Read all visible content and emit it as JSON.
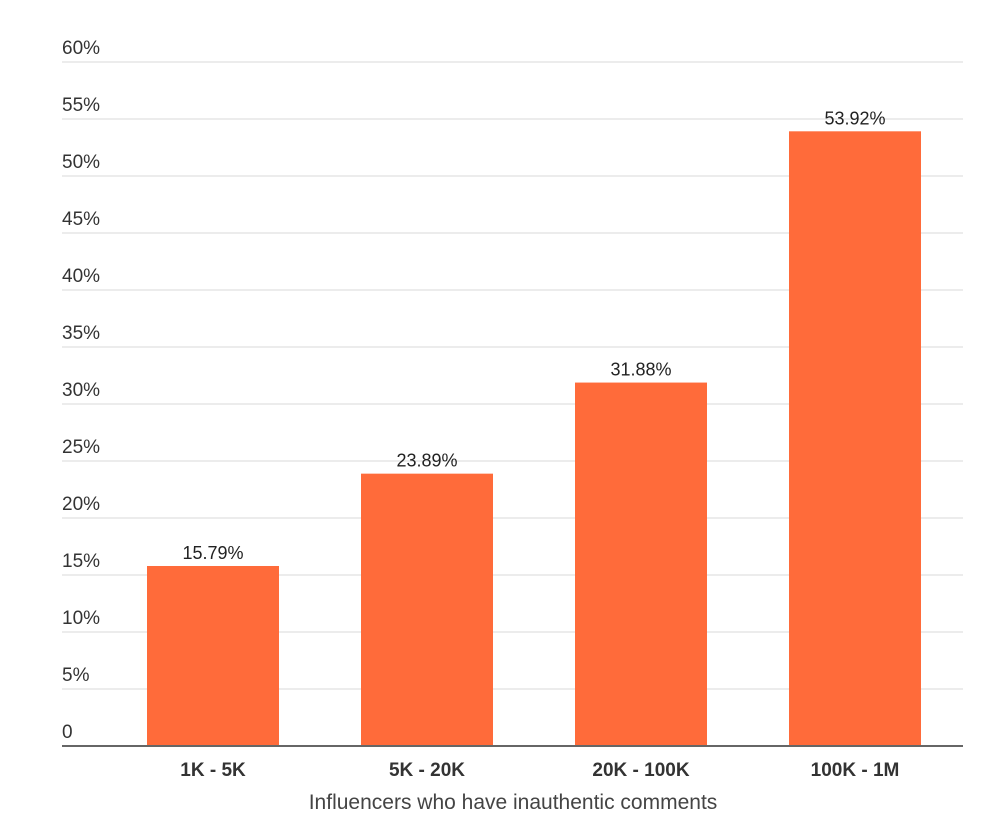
{
  "chart_data": {
    "type": "bar",
    "categories": [
      "1K - 5K",
      "5K - 20K",
      "20K - 100K",
      "100K - 1M"
    ],
    "values": [
      15.79,
      23.89,
      31.88,
      53.92
    ],
    "value_labels": [
      "15.79%",
      "23.89%",
      "31.88%",
      "53.92%"
    ],
    "xlabel": "Influencers who have inauthentic comments",
    "ylabel": "",
    "ylim": [
      0,
      60
    ],
    "y_ticks": [
      0,
      5,
      10,
      15,
      20,
      25,
      30,
      35,
      40,
      45,
      50,
      55,
      60
    ],
    "y_tick_labels": [
      "0",
      "5%",
      "10%",
      "15%",
      "20%",
      "25%",
      "30%",
      "35%",
      "40%",
      "45%",
      "50%",
      "55%",
      "60%"
    ],
    "grid": true,
    "legend": "none",
    "colors": {
      "bar": "#ff6b3a",
      "grid": "#d9d9d9",
      "baseline": "#666666"
    }
  }
}
